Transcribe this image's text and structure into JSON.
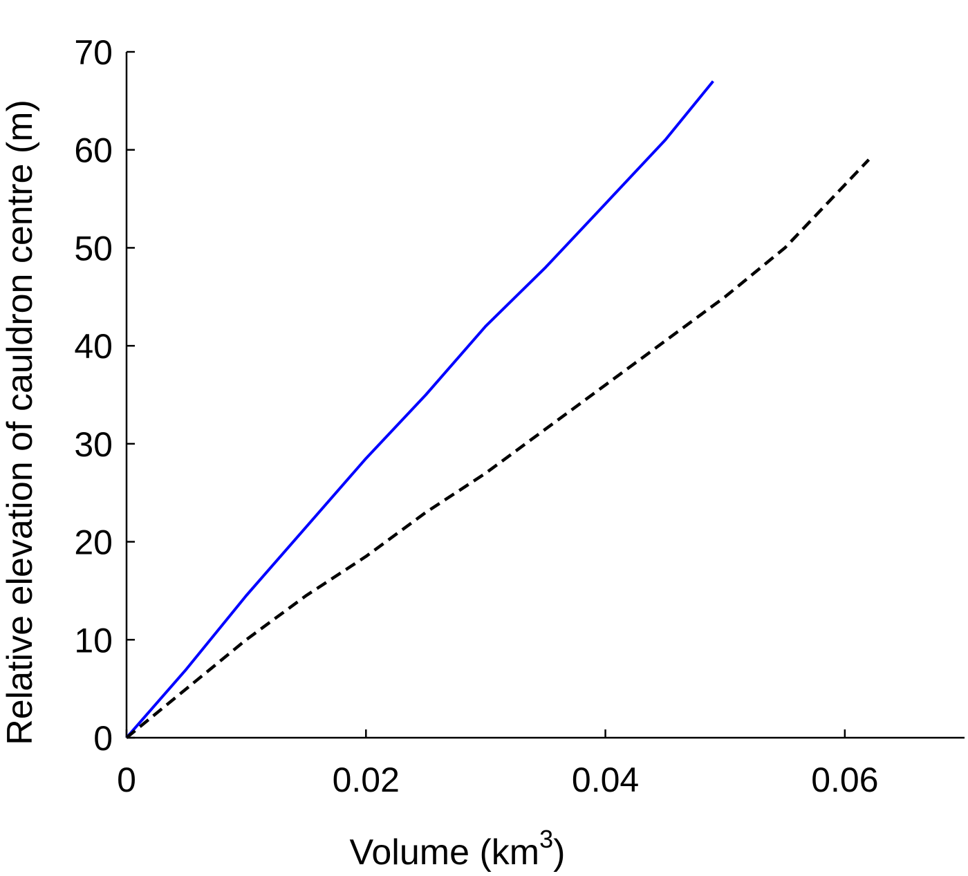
{
  "chart_data": {
    "type": "line",
    "title": "",
    "xlabel": "Volume (km",
    "xlabel_superscript": "3",
    "xlabel_suffix": ")",
    "ylabel": "Relative elevation of cauldron centre (m)",
    "xlim": [
      0,
      0.07
    ],
    "ylim": [
      0,
      70
    ],
    "x_ticks": [
      0,
      0.02,
      0.04,
      0.06
    ],
    "x_tick_labels": [
      "0",
      "0.02",
      "0.04",
      "0.06"
    ],
    "y_ticks": [
      0,
      10,
      20,
      30,
      40,
      50,
      60,
      70
    ],
    "y_tick_labels": [
      "0",
      "10",
      "20",
      "30",
      "40",
      "50",
      "60",
      "70"
    ],
    "grid": false,
    "legend": "none",
    "series": [
      {
        "color": "#0000ff",
        "style": "solid",
        "x": [
          0,
          0.005,
          0.01,
          0.015,
          0.02,
          0.025,
          0.03,
          0.035,
          0.04,
          0.045,
          0.049
        ],
        "y": [
          0,
          7,
          14.5,
          21.5,
          28.5,
          35,
          42,
          48,
          54.5,
          61,
          67
        ]
      },
      {
        "color": "#000000",
        "style": "dashed",
        "x": [
          0,
          0.005,
          0.01,
          0.015,
          0.02,
          0.025,
          0.03,
          0.035,
          0.04,
          0.045,
          0.05,
          0.055,
          0.062
        ],
        "y": [
          0,
          5,
          10,
          14.5,
          18.5,
          23,
          27,
          31.5,
          36,
          40.5,
          45,
          50,
          59
        ]
      }
    ]
  }
}
